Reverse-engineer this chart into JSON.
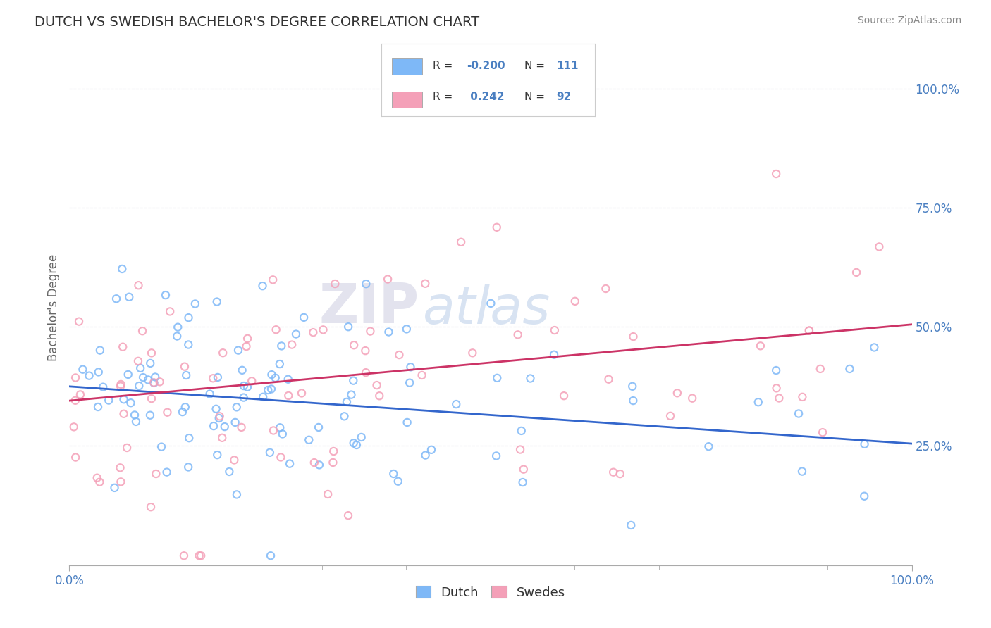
{
  "title": "DUTCH VS SWEDISH BACHELOR'S DEGREE CORRELATION CHART",
  "source": "Source: ZipAtlas.com",
  "ylabel": "Bachelor's Degree",
  "xlim": [
    0.0,
    1.0
  ],
  "ylim": [
    0.0,
    1.08
  ],
  "x_ticks": [
    0.0,
    1.0
  ],
  "x_tick_labels": [
    "0.0%",
    "100.0%"
  ],
  "y_ticks": [
    0.25,
    0.5,
    0.75,
    1.0
  ],
  "y_tick_labels": [
    "25.0%",
    "50.0%",
    "75.0%",
    "100.0%"
  ],
  "dutch_color": "#7eb8f7",
  "swedish_color": "#f4a0b8",
  "dutch_line_color": "#3366cc",
  "swedish_line_color": "#cc3366",
  "dutch_R": -0.2,
  "dutch_N": 111,
  "swedish_R": 0.242,
  "swedish_N": 92,
  "background_color": "#ffffff",
  "grid_color": "#bbbbcc",
  "watermark_zip": "ZIP",
  "watermark_atlas": "atlas",
  "legend_label_dutch": "Dutch",
  "legend_label_swedish": "Swedes",
  "title_color": "#4a7fc1",
  "label_color": "#4a7fc1",
  "tick_color": "#4a7fc1",
  "title_fontsize": 14,
  "scatter_size": 55,
  "scatter_alpha": 0.85,
  "dutch_seed": 42,
  "swedish_seed": 7,
  "dutch_line_start_y": 0.375,
  "dutch_line_end_y": 0.255,
  "swedish_line_start_y": 0.345,
  "swedish_line_end_y": 0.505
}
